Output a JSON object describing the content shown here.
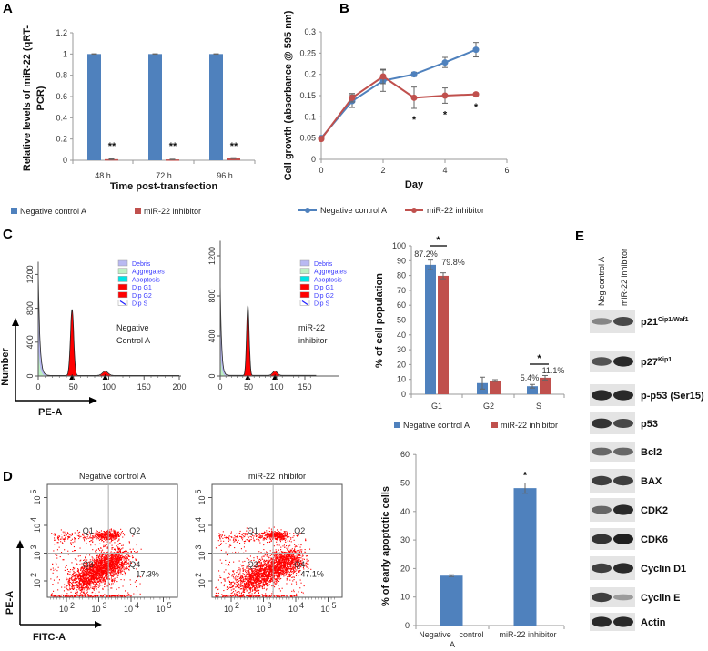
{
  "panel_labels": [
    "A",
    "B",
    "C",
    "D",
    "E"
  ],
  "chart_data": [
    {
      "id": "A",
      "type": "bar",
      "ylabel_lines": [
        "Relative levels of miR-22 (qRT-",
        "PCR)"
      ],
      "xlabel": "Time post-transfection",
      "categories": [
        "48 h",
        "72 h",
        "96 h"
      ],
      "ylim": [
        0,
        1.2
      ],
      "yticks": [
        "0",
        "0.2",
        "0.4",
        "0.6",
        "0.8",
        "1",
        "1.2"
      ],
      "series": [
        {
          "name": "Negative control A",
          "values": [
            1.0,
            1.0,
            1.0
          ],
          "errors": [
            0.002,
            0.002,
            0.002
          ],
          "color": "#4f81bd"
        },
        {
          "name": "miR-22 inhibitor",
          "values": [
            0.01,
            0.008,
            0.02
          ],
          "errors": [
            0.003,
            0.002,
            0.004
          ],
          "color": "#c0504d"
        }
      ],
      "annotations": [
        "**",
        "**",
        "**"
      ],
      "legend": "bottom"
    },
    {
      "id": "B",
      "type": "line",
      "ylabel": "Cell growth (absorbance @ 595 nm)",
      "xlabel": "Day",
      "x": [
        0,
        1,
        2,
        3,
        4,
        5
      ],
      "xticks": [
        "0",
        "2",
        "4",
        "6"
      ],
      "xlim": [
        0,
        6
      ],
      "ylim": [
        0,
        0.3
      ],
      "yticks": [
        "0",
        "0.05",
        "0.1",
        "0.15",
        "0.2",
        "0.25",
        "0.3"
      ],
      "series": [
        {
          "name": "Negative control A",
          "values": [
            0.05,
            0.137,
            0.185,
            0.2,
            0.228,
            0.258
          ],
          "errors": [
            0.004,
            0.015,
            0.025,
            0.005,
            0.012,
            0.017
          ],
          "color": "#4f81bd"
        },
        {
          "name": "miR-22 inhibitor",
          "values": [
            0.048,
            0.145,
            0.195,
            0.145,
            0.15,
            0.153
          ],
          "errors": [
            0.003,
            0.01,
            0.017,
            0.025,
            0.018,
            0.003
          ],
          "color": "#c0504d"
        }
      ],
      "annotations": [
        {
          "x": 3,
          "text": "*"
        },
        {
          "x": 4,
          "text": "*"
        },
        {
          "x": 5,
          "text": "*"
        }
      ],
      "legend": "bottom"
    },
    {
      "id": "C-hist-negative",
      "type": "area",
      "title_lines": [
        "Negative",
        "Control A"
      ],
      "xlabel": "PE-A",
      "ylabel": "Number",
      "xticks": [
        "0",
        "50",
        "100",
        "150",
        "200"
      ],
      "yticks": [
        "0",
        "400",
        "800",
        "1200"
      ],
      "legend": [
        "Debris",
        "Aggregates",
        "Apoptosis",
        "Dip G1",
        "Dip G2",
        "Dip S"
      ],
      "legend_colors": [
        "#b9b9f2",
        "#bdf0c4",
        "#00e5e5",
        "#ff0000",
        "#ff0000",
        "#ffffff"
      ],
      "peaks": {
        "debris": 1250,
        "g1_position": 48,
        "g1_height": 780,
        "g2_position": 95,
        "g2_height": 50
      }
    },
    {
      "id": "C-hist-inhibitor",
      "type": "area",
      "title_lines": [
        "miR-22",
        "inhibitor"
      ],
      "xticks": [
        "0",
        "50",
        "100",
        "150"
      ],
      "yticks": [
        "0",
        "400",
        "800",
        "1200"
      ],
      "legend": [
        "Debris",
        "Aggregates",
        "Apoptosis",
        "Dip G1",
        "Dip G2",
        "Dip S"
      ],
      "legend_colors": [
        "#b9b9f2",
        "#bdf0c4",
        "#00e5e5",
        "#ff0000",
        "#ff0000",
        "#ffffff"
      ],
      "peaks": {
        "debris": 950,
        "g1_position": 49,
        "g1_height": 700,
        "g2_position": 97,
        "g2_height": 45
      }
    },
    {
      "id": "C-bar",
      "type": "bar",
      "ylabel": "% of cell population",
      "categories": [
        "G1",
        "G2",
        "S"
      ],
      "ylim": [
        0,
        100
      ],
      "yticks": [
        "0",
        "10",
        "20",
        "30",
        "40",
        "50",
        "60",
        "70",
        "80",
        "90",
        "100"
      ],
      "series": [
        {
          "name": "Negative control A",
          "values": [
            87.2,
            7.5,
            5.4
          ],
          "errors": [
            3.2,
            4.0,
            1.2
          ],
          "color": "#4f81bd"
        },
        {
          "name": "miR-22 inhibitor",
          "values": [
            79.8,
            9.2,
            11.1
          ],
          "errors": [
            2.0,
            0.6,
            1.5
          ],
          "color": "#c0504d"
        }
      ],
      "value_labels": [
        [
          "87.2%",
          "",
          ""
        ],
        [
          "79.8%",
          "",
          ""
        ],
        [
          "",
          "",
          "5.4%"
        ],
        [
          "",
          "",
          "11.1%"
        ]
      ],
      "value_label_list": [
        "87.2%",
        "79.8%",
        "5.4%",
        "11.1%"
      ],
      "significance": [
        {
          "category": "G1",
          "text": "*"
        },
        {
          "category": "S",
          "text": "*"
        }
      ],
      "legend": "bottom"
    },
    {
      "id": "D-scatter-negative",
      "type": "scatter",
      "title": "Negative control A",
      "xlabel": "FITC-A",
      "ylabel": "PE-A",
      "tick_base": "10",
      "xtick_exponents": [
        "2",
        "3",
        "4",
        "5"
      ],
      "ytick_exponents": [
        "2",
        "3",
        "4",
        "5"
      ],
      "quadrants": [
        "Q1",
        "Q2",
        "Q3",
        "Q4"
      ],
      "q4_percent": "17.3%",
      "point_color": "#ff0000"
    },
    {
      "id": "D-scatter-inhibitor",
      "type": "scatter",
      "title": "miR-22 inhibitor",
      "tick_base": "10",
      "xtick_exponents": [
        "2",
        "3",
        "4",
        "5"
      ],
      "ytick_exponents": [
        "2",
        "3",
        "4",
        "5"
      ],
      "quadrants": [
        "Q1",
        "Q2",
        "Q3",
        "Q4"
      ],
      "q4_percent": "47.1%",
      "point_color": "#ff0000"
    },
    {
      "id": "D-bar",
      "type": "bar",
      "ylabel": "% of early apoptotic cells",
      "categories": [
        [
          "Negative",
          "control",
          "A"
        ],
        [
          "miR-22 inhibitor"
        ]
      ],
      "ylim": [
        0,
        60
      ],
      "yticks": [
        "0",
        "10",
        "20",
        "30",
        "40",
        "50",
        "60"
      ],
      "values": [
        17.5,
        48.2
      ],
      "errors": [
        0.3,
        1.8
      ],
      "color": "#4f81bd",
      "annotations": [
        "",
        "*"
      ]
    }
  ],
  "western_blot": {
    "lanes": [
      "Neg control A",
      "miR-22 inhibitor"
    ],
    "proteins": [
      {
        "name": "p21",
        "sup": "Cip1/Waf1",
        "intensity": [
          0.45,
          0.75
        ]
      },
      {
        "name": "p27",
        "sup": "Kip1",
        "intensity": [
          0.7,
          0.9
        ]
      },
      {
        "name": "p-p53 (Ser15)",
        "sup": "",
        "intensity": [
          0.9,
          0.9
        ]
      },
      {
        "name": "p53",
        "sup": "",
        "intensity": [
          0.85,
          0.75
        ]
      },
      {
        "name": "Bcl2",
        "sup": "",
        "intensity": [
          0.6,
          0.6
        ]
      },
      {
        "name": "BAX",
        "sup": "",
        "intensity": [
          0.8,
          0.8
        ]
      },
      {
        "name": "CDK2",
        "sup": "",
        "intensity": [
          0.6,
          0.9
        ]
      },
      {
        "name": "CDK6",
        "sup": "",
        "intensity": [
          0.85,
          0.95
        ]
      },
      {
        "name": "Cyclin D1",
        "sup": "",
        "intensity": [
          0.8,
          0.9
        ]
      },
      {
        "name": "Cyclin E",
        "sup": "",
        "intensity": [
          0.8,
          0.35
        ]
      },
      {
        "name": "Actin",
        "sup": "",
        "intensity": [
          0.9,
          0.9
        ]
      }
    ]
  }
}
